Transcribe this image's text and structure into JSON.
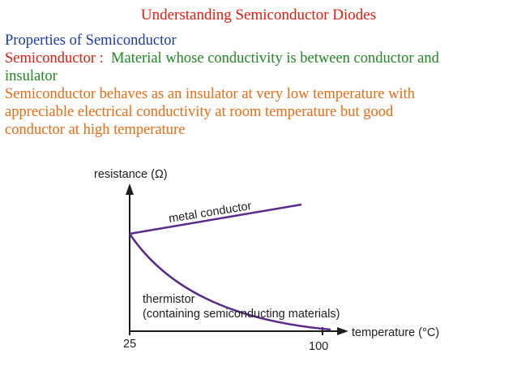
{
  "slide": {
    "title": "Understanding Semiconductor Diodes",
    "heading": "Properties of Semiconductor",
    "definition": {
      "term": "Semiconductor",
      "separator": " :  ",
      "text_line1": "Material whose conductivity is between conductor and",
      "text_line2": "insulator"
    },
    "description": {
      "line1": "Semiconductor behaves as an insulator at very low temperature with",
      "line2": "appreciable electrical conductivity at room temperature but good",
      "line3": "conductor at high temperature"
    },
    "colors": {
      "title": "#e8190c",
      "heading": "#1a3aa8",
      "term": "#e8190c",
      "definition": "#1f8a1f",
      "description": "#ee6a12",
      "curve": "#5b2a8c"
    }
  },
  "figure": {
    "y_axis_label": "resistance (Ω)",
    "x_axis_label": "temperature (°C)",
    "x_tick_start": "25",
    "x_tick_end": "100",
    "metal_label": "metal conductor",
    "thermistor_label_line1": "thermistor",
    "thermistor_label_line2": "(containing semiconducting materials)"
  }
}
